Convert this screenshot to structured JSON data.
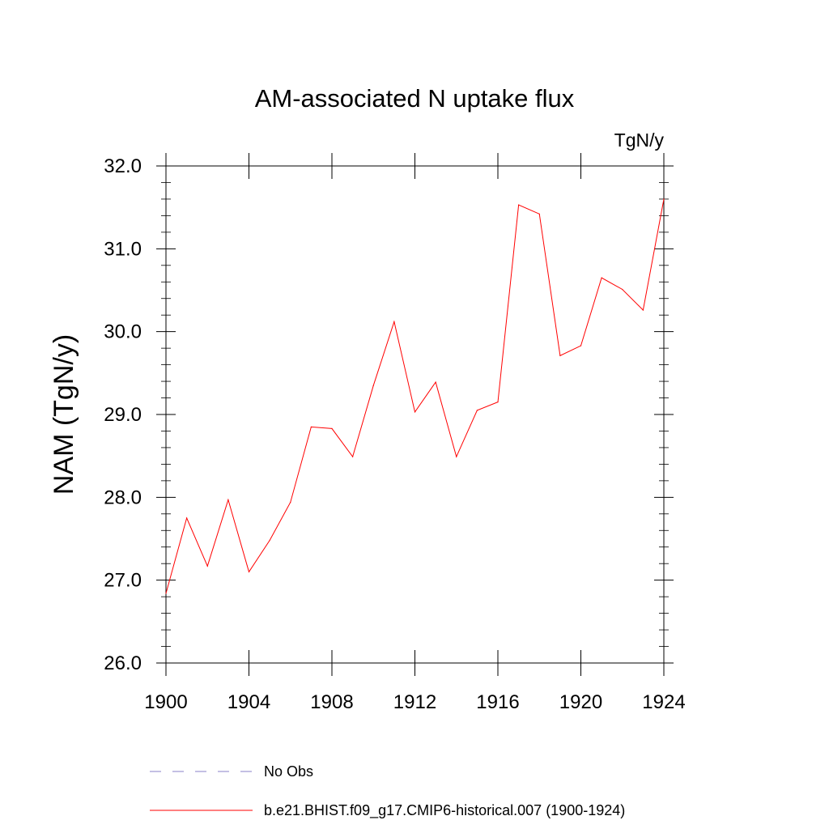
{
  "chart_data": {
    "type": "line",
    "title": "AM-associated N uptake flux",
    "units": "TgN/y",
    "ylabel": "NAM  (TgN/y)",
    "xlabel": "",
    "xlim": [
      1900,
      1924
    ],
    "ylim": [
      26.0,
      32.0
    ],
    "x_ticks": [
      1900,
      1904,
      1908,
      1912,
      1916,
      1920,
      1924
    ],
    "x_tick_labels": [
      "1900",
      "1904",
      "1908",
      "1912",
      "1916",
      "1920",
      "1924"
    ],
    "y_ticks": [
      26.0,
      27.0,
      28.0,
      29.0,
      30.0,
      31.0,
      32.0
    ],
    "y_tick_labels": [
      "26.0",
      "27.0",
      "28.0",
      "29.0",
      "30.0",
      "31.0",
      "32.0"
    ],
    "x": [
      1900,
      1901,
      1902,
      1903,
      1904,
      1905,
      1906,
      1907,
      1908,
      1909,
      1910,
      1911,
      1912,
      1913,
      1914,
      1915,
      1916,
      1917,
      1918,
      1919,
      1920,
      1921,
      1922,
      1923,
      1924
    ],
    "series": [
      {
        "name": "b.e21.BHIST.f09_g17.CMIP6-historical.007 (1900-1924)",
        "color": "#ff0000",
        "values": [
          26.84,
          27.75,
          27.17,
          27.97,
          27.1,
          27.48,
          27.94,
          28.85,
          28.83,
          28.49,
          29.35,
          30.12,
          29.03,
          29.39,
          28.49,
          29.05,
          29.15,
          31.53,
          31.42,
          29.71,
          29.83,
          30.65,
          30.51,
          30.26,
          31.6
        ]
      }
    ],
    "legend": {
      "placement": "bottom",
      "entries": [
        {
          "label": "No Obs",
          "color": "#8a82c8",
          "style": "dashed"
        },
        {
          "label": "b.e21.BHIST.f09_g17.CMIP6-historical.007 (1900-1924)",
          "color": "#ff0000",
          "style": "solid"
        }
      ]
    },
    "grid": false
  }
}
